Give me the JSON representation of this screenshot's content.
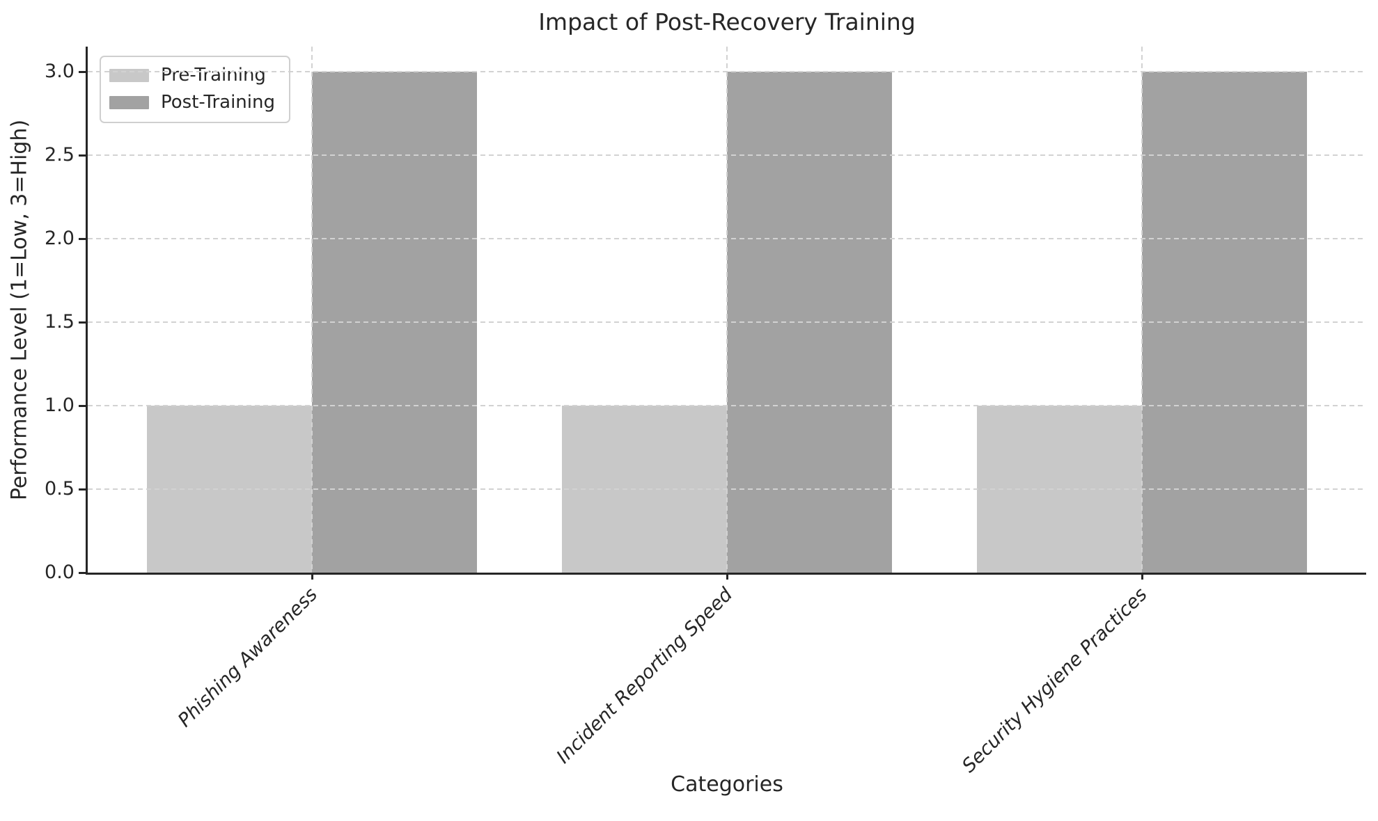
{
  "figure": {
    "title": "Impact of Post-Recovery Training",
    "xlabel": "Categories",
    "ylabel": "Performance Level (1=Low, 3=High)"
  },
  "chart_data": {
    "type": "bar",
    "title": "Impact of Post-Recovery Training",
    "categories": [
      "Phishing Awareness",
      "Incident Reporting Speed",
      "Security Hygiene Practices"
    ],
    "series": [
      {
        "name": "Pre-Training",
        "values": [
          1,
          1,
          1
        ],
        "color": "#c8c8c8"
      },
      {
        "name": "Post-Training",
        "values": [
          3,
          3,
          3
        ],
        "color": "#a2a2a2"
      }
    ],
    "xlabel": "Categories",
    "ylabel": "Performance Level (1=Low, 3=High)",
    "ylim": [
      0,
      3.15
    ],
    "yticks": [
      0,
      0.5,
      1,
      1.5,
      2,
      2.5,
      3
    ],
    "ytick_labels": [
      "0.0",
      "0.5",
      "1.0",
      "1.5",
      "2.0",
      "2.5",
      "3.0"
    ],
    "grid": "both axes, dashed, drawn over bars",
    "legend_position": "upper left",
    "xtick_label_style": "italic, rotated 45deg"
  },
  "colors": {
    "background": "#ffffff",
    "pre_bar": "#c8c8c8",
    "post_bar": "#a2a2a2",
    "grid": "#d2d2d2",
    "axis": "#262626",
    "text": "#262626",
    "legend_border": "#cfcfcf"
  }
}
